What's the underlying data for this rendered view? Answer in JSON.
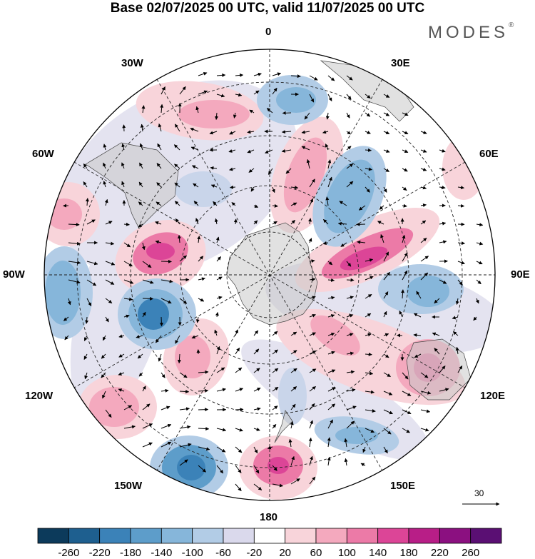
{
  "title": "Base 02/07/2025 00 UTC, valid 11/07/2025 00 UTC",
  "brand": {
    "name": "MODES",
    "mark": "®"
  },
  "longitude_labels": {
    "top": "0",
    "bottom": "180",
    "left": "90W",
    "right": "90E",
    "upper_left_1": "30W",
    "upper_left_2": "60W",
    "upper_right_1": "30E",
    "upper_right_2": "60E",
    "lower_left_1": "120W",
    "lower_left_2": "150W",
    "lower_right_1": "120E",
    "lower_right_2": "150E"
  },
  "wind_reference": {
    "label": "30"
  },
  "colorbar": {
    "labels": [
      "-260",
      "-220",
      "-180",
      "-140",
      "-100",
      "-60",
      "-20",
      "20",
      "60",
      "100",
      "140",
      "180",
      "220",
      "260"
    ],
    "colors": [
      "#0c3a5b",
      "#1e5f8f",
      "#3b82b8",
      "#5d9dca",
      "#86b6da",
      "#b2cce6",
      "#dad9ec",
      "#ffffff",
      "#f8d4da",
      "#f4a9be",
      "#ec7aa7",
      "#dc4597",
      "#b81e87",
      "#8b1080",
      "#5a0f73"
    ]
  }
}
